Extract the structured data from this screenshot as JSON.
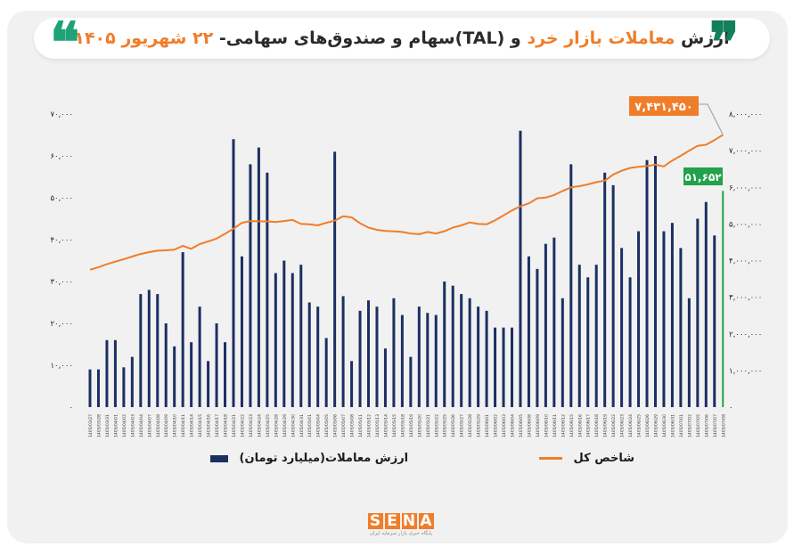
{
  "header": {
    "title_prefix": "ارزش ",
    "title_highlight": "معاملات بازار خرد",
    "title_suffix": " و (TAL)سهام و صندوق‌های سهامی- ",
    "title_date": "۲۲ شهریور ۱۴۰۵",
    "quote_open": "❞",
    "quote_close": "❝"
  },
  "colors": {
    "bar": "#1b2f63",
    "line": "#f07d2a",
    "highlight_bar": "#22a24a",
    "brand_orange": "#f07d2a"
  },
  "legend": {
    "bars_label": "ارزش معاملات(میلیارد تومان)",
    "line_label": "شاخص کل"
  },
  "logo": {
    "letters": [
      "S",
      "E",
      "N",
      "A"
    ],
    "tagline": "پایگاه خبری بازار سرمایه ایران"
  },
  "chart_data": {
    "type": "bar",
    "series": [
      {
        "name": "ارزش معاملات(میلیارد تومان)",
        "axis": "left",
        "values": [
          9000,
          9000,
          16000,
          16000,
          9500,
          12000,
          27000,
          28000,
          27000,
          20000,
          14500,
          37000,
          15500,
          24000,
          11000,
          20000,
          15500,
          64000,
          36000,
          58000,
          62000,
          56000,
          32000,
          35000,
          32000,
          34000,
          25000,
          24000,
          16500,
          61000,
          26500,
          11000,
          23000,
          25500,
          24000,
          14000,
          26000,
          22000,
          12000,
          24000,
          22500,
          22000,
          30000,
          29000,
          27000,
          26000,
          24000,
          23000,
          19000,
          19000,
          19000,
          66000,
          36000,
          33000,
          39000,
          40500,
          26000,
          58000,
          34000,
          31000,
          34000,
          56000,
          53000,
          38000,
          31000,
          42000,
          59000,
          60000,
          42000,
          44000,
          38000,
          26000,
          45000,
          49000,
          41000,
          51652
        ]
      },
      {
        "name": "شاخص کل",
        "axis": "right",
        "values": [
          3750000,
          3820000,
          3900000,
          3970000,
          4040000,
          4110000,
          4180000,
          4230000,
          4270000,
          4280000,
          4300000,
          4400000,
          4320000,
          4450000,
          4520000,
          4600000,
          4730000,
          4870000,
          5030000,
          5080000,
          5070000,
          5070000,
          5050000,
          5080000,
          5110000,
          5000000,
          4990000,
          4960000,
          5030000,
          5090000,
          5210000,
          5180000,
          5020000,
          4900000,
          4840000,
          4810000,
          4800000,
          4780000,
          4740000,
          4720000,
          4780000,
          4740000,
          4800000,
          4900000,
          4960000,
          5040000,
          5000000,
          4990000,
          5100000,
          5230000,
          5370000,
          5480000,
          5560000,
          5700000,
          5720000,
          5790000,
          5900000,
          6000000,
          6030000,
          6080000,
          6140000,
          6180000,
          6350000,
          6450000,
          6530000,
          6560000,
          6580000,
          6620000,
          6570000,
          6730000,
          6860000,
          7000000,
          7130000,
          7160000,
          7290000,
          7431450
        ]
      }
    ],
    "categories": [
      "1405/03/27",
      "1405/03/28",
      "1405/03/31",
      "1405/04/01",
      "1405/04/02",
      "1405/04/03",
      "1405/04/04",
      "1405/04/07",
      "1405/04/08",
      "1405/04/09",
      "1405/04/10",
      "1405/04/11",
      "1405/04/14",
      "1405/04/15",
      "1405/04/16",
      "1405/04/17",
      "1405/04/18",
      "1405/04/21",
      "1405/04/22",
      "1405/04/23",
      "1405/04/24",
      "1405/04/25",
      "1405/04/28",
      "1405/04/29",
      "1405/04/30",
      "1405/04/31",
      "1405/05/01",
      "1405/05/04",
      "1405/05/05",
      "1405/05/06",
      "1405/05/07",
      "1405/05/08",
      "1405/05/11",
      "1405/05/12",
      "1405/05/13",
      "1405/05/14",
      "1405/05/15",
      "1405/05/18",
      "1405/05/19",
      "1405/05/20",
      "1405/05/21",
      "1405/05/22",
      "1405/05/25",
      "1405/05/26",
      "1405/05/27",
      "1405/05/28",
      "1405/05/29",
      "1405/06/01",
      "1405/06/02",
      "1405/06/03",
      "1405/06/04",
      "1405/06/05",
      "1405/06/08",
      "1405/06/09",
      "1405/06/10",
      "1405/06/11",
      "1405/06/12",
      "1405/06/15",
      "1405/06/16",
      "1405/06/17",
      "1405/06/18",
      "1405/06/19",
      "1405/06/22",
      "1405/06/23",
      "1405/06/24",
      "1405/06/25",
      "1405/06/26",
      "1405/06/29",
      "1405/06/30",
      "1405/06/31",
      "1405/07/01",
      "1405/07/02",
      "1405/07/05",
      "1405/07/06",
      "1405/07/07",
      "1405/07/08"
    ],
    "left_axis": {
      "ylim": [
        0,
        70000
      ],
      "ticks": [
        0,
        10000,
        20000,
        30000,
        40000,
        50000,
        60000,
        70000
      ],
      "tick_labels": [
        "۰",
        "۱۰,۰۰۰",
        "۲۰,۰۰۰",
        "۳۰,۰۰۰",
        "۴۰,۰۰۰",
        "۵۰,۰۰۰",
        "۶۰,۰۰۰",
        "۷۰,۰۰۰"
      ]
    },
    "right_axis": {
      "ylim": [
        0,
        8000000
      ],
      "ticks": [
        0,
        1000000,
        2000000,
        3000000,
        4000000,
        5000000,
        6000000,
        7000000,
        8000000
      ],
      "tick_labels": [
        "۰",
        "۱,۰۰۰,۰۰۰",
        "۲,۰۰۰,۰۰۰",
        "۳,۰۰۰,۰۰۰",
        "۴,۰۰۰,۰۰۰",
        "۵,۰۰۰,۰۰۰",
        "۶,۰۰۰,۰۰۰",
        "۷,۰۰۰,۰۰۰",
        "۸,۰۰۰,۰۰۰"
      ]
    },
    "annotations": {
      "last_index_label": "۷,۴۳۱,۴۵۰",
      "last_value_label": "۵۱,۶۵۲"
    },
    "grid": false,
    "legend_position": "bottom"
  }
}
